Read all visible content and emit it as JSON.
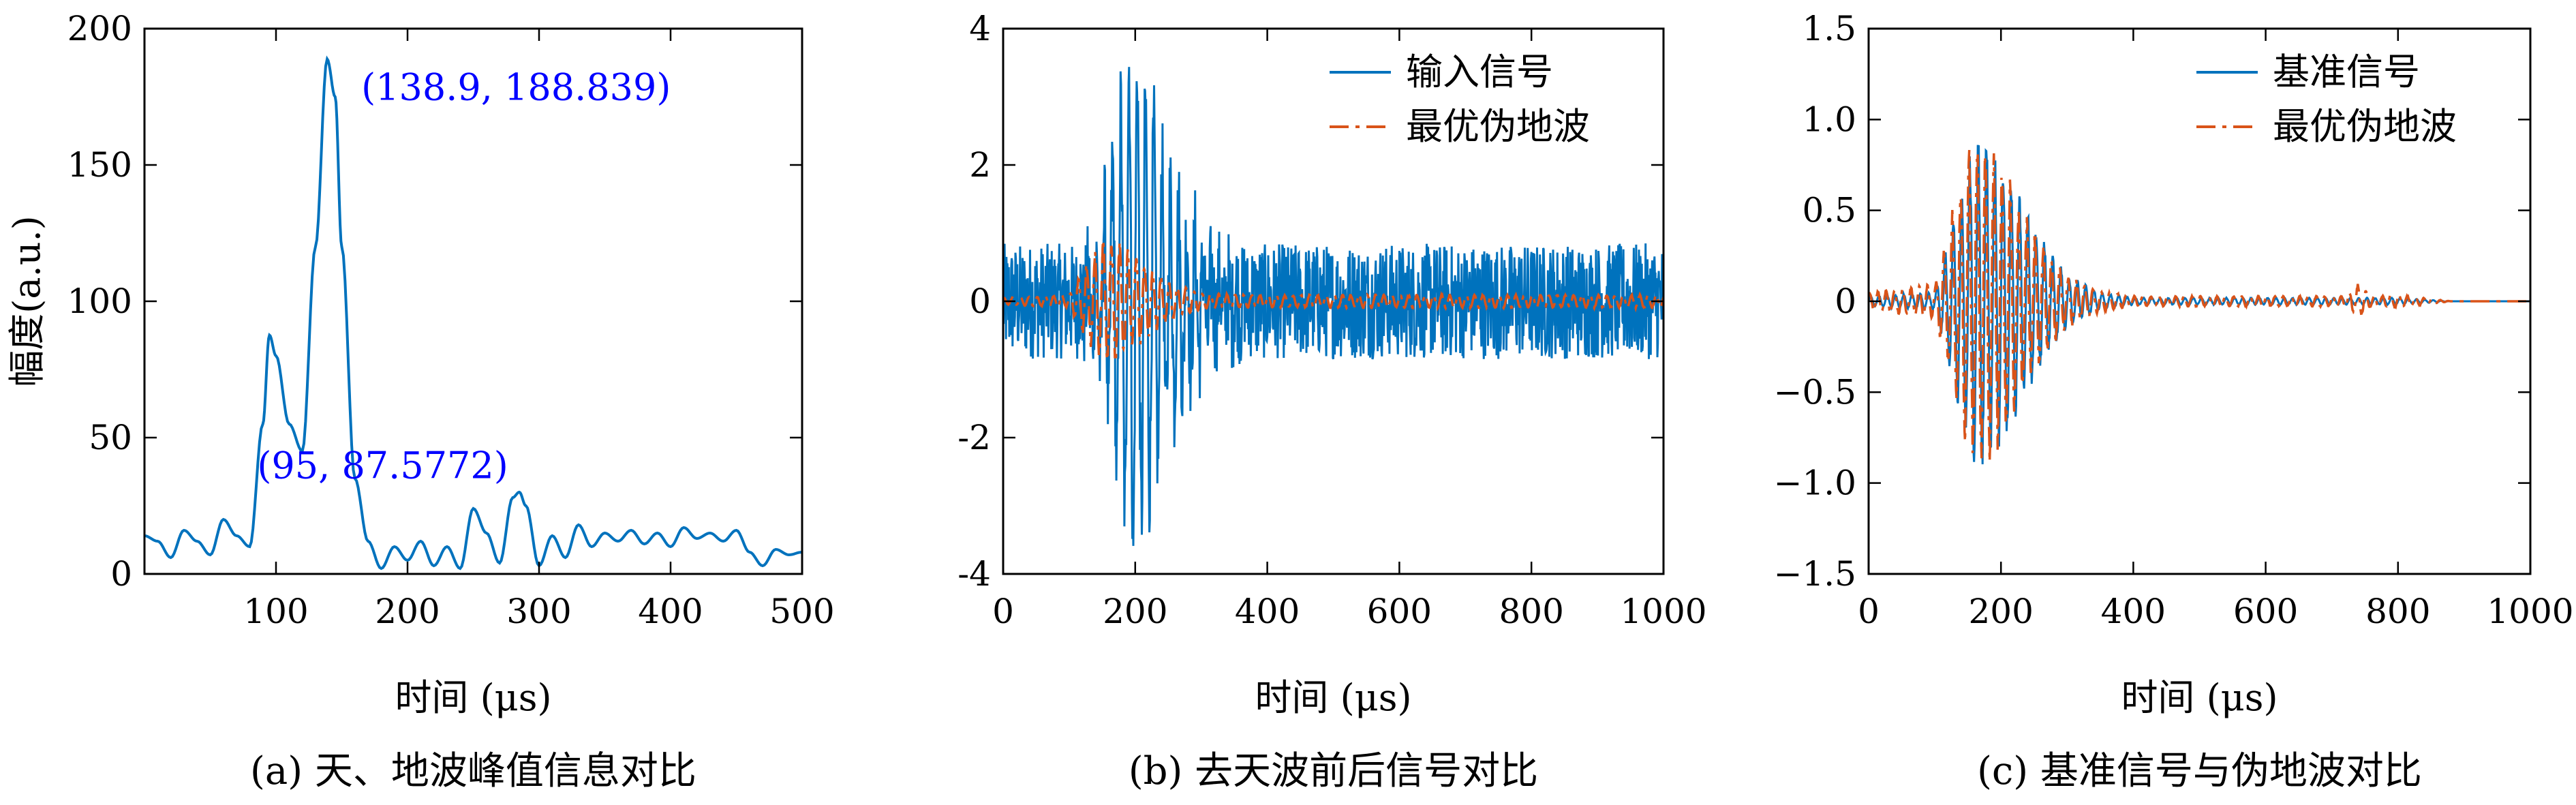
{
  "colors": {
    "blue": "#0072BD",
    "orange": "#D95319",
    "annotation": "#0000FF"
  },
  "chart_data": [
    {
      "type": "line",
      "caption": "(a) 天、地波峰值信息对比",
      "xlabel": "时间 (μs)",
      "ylabel": "幅度(a.u.)",
      "xlim": [
        0,
        500
      ],
      "ylim": [
        0,
        200
      ],
      "xticks": [
        100,
        200,
        300,
        400,
        500
      ],
      "yticks": [
        0,
        50,
        100,
        150,
        200
      ],
      "grid": false,
      "series": [
        {
          "x": [
            0,
            10,
            20,
            30,
            40,
            50,
            60,
            70,
            80,
            90,
            95,
            100,
            110,
            120,
            130,
            138.9,
            145,
            150,
            160,
            170,
            180,
            190,
            200,
            210,
            220,
            230,
            240,
            250,
            260,
            270,
            280,
            285,
            290,
            300,
            310,
            320,
            330,
            340,
            350,
            360,
            370,
            380,
            390,
            400,
            410,
            420,
            430,
            440,
            450,
            460,
            470,
            480,
            490,
            500
          ],
          "y": [
            14,
            12,
            6,
            16,
            12,
            7,
            20,
            14,
            10,
            55,
            87.5772,
            80,
            55,
            45,
            120,
            188.839,
            175,
            120,
            35,
            12,
            2,
            10,
            5,
            12,
            3,
            10,
            2,
            24,
            15,
            4,
            28,
            30,
            25,
            3,
            14,
            6,
            18,
            10,
            15,
            12,
            16,
            11,
            15,
            10,
            17,
            13,
            15,
            12,
            16,
            8,
            3,
            9,
            7,
            8
          ]
        }
      ],
      "annotations": [
        {
          "text": "(138.9, 188.839)",
          "x": 138.9,
          "y": 188.839
        },
        {
          "text": "(95, 87.5772)",
          "x": 95,
          "y": 87.5772
        }
      ]
    },
    {
      "type": "line",
      "caption": "(b) 去天波前后信号对比",
      "xlabel": "时间 (μs)",
      "ylabel": "",
      "xlim": [
        0,
        1000
      ],
      "ylim": [
        -4,
        4
      ],
      "xticks": [
        0,
        200,
        400,
        600,
        800,
        1000
      ],
      "yticks": [
        -4,
        -2,
        0,
        2,
        4
      ],
      "grid": false,
      "legend_position": "top-right",
      "series": [
        {
          "name": "输入信号",
          "x": [
            0,
            100,
            120,
            150,
            180,
            195,
            220,
            260,
            300,
            400,
            600,
            800,
            1000
          ],
          "y_envelope": [
            0.9,
            0.9,
            1.0,
            2.0,
            3.5,
            3.85,
            2.8,
            1.5,
            1.0,
            1.0,
            0.9,
            0.9,
            0.9
          ]
        },
        {
          "name": "最优伪地波",
          "x": [
            0,
            100,
            120,
            150,
            170,
            200,
            250,
            300,
            400,
            600,
            800,
            1000
          ],
          "y_envelope": [
            0.05,
            0.1,
            0.5,
            0.9,
            1.0,
            0.7,
            0.3,
            0.12,
            0.1,
            0.1,
            0.1,
            0.1
          ]
        }
      ]
    },
    {
      "type": "line",
      "caption": "(c) 基准信号与伪地波对比",
      "xlabel": "时间 (μs)",
      "ylabel": "",
      "xlim": [
        0,
        1000
      ],
      "ylim": [
        -1.5,
        1.5
      ],
      "xticks": [
        0,
        200,
        400,
        600,
        800,
        1000
      ],
      "yticks": [
        -1.5,
        -1.0,
        -0.5,
        0,
        0.5,
        1.0,
        1.5
      ],
      "ytick_labels": [
        "−1.5",
        "−1.0",
        "−0.5",
        "0",
        "0.5",
        "1.0",
        "1.5"
      ],
      "grid": false,
      "legend_position": "top-right",
      "series": [
        {
          "name": "基准信号",
          "x": [
            0,
            100,
            120,
            150,
            170,
            200,
            250,
            300,
            350,
            400,
            600,
            800,
            880,
            1000
          ],
          "y_envelope": [
            0.03,
            0.05,
            0.35,
            0.85,
            1.0,
            0.85,
            0.45,
            0.15,
            0.05,
            0.02,
            0.02,
            0.02,
            0.0,
            0.0
          ]
        },
        {
          "name": "最优伪地波",
          "x": [
            0,
            100,
            120,
            150,
            170,
            200,
            250,
            300,
            350,
            400,
            600,
            720,
            740,
            760,
            800,
            880,
            1000
          ],
          "y_envelope": [
            0.05,
            0.1,
            0.4,
            0.9,
            1.0,
            0.8,
            0.4,
            0.15,
            0.06,
            0.03,
            0.03,
            0.03,
            0.1,
            0.03,
            0.04,
            0.0,
            0.0
          ]
        }
      ]
    }
  ]
}
